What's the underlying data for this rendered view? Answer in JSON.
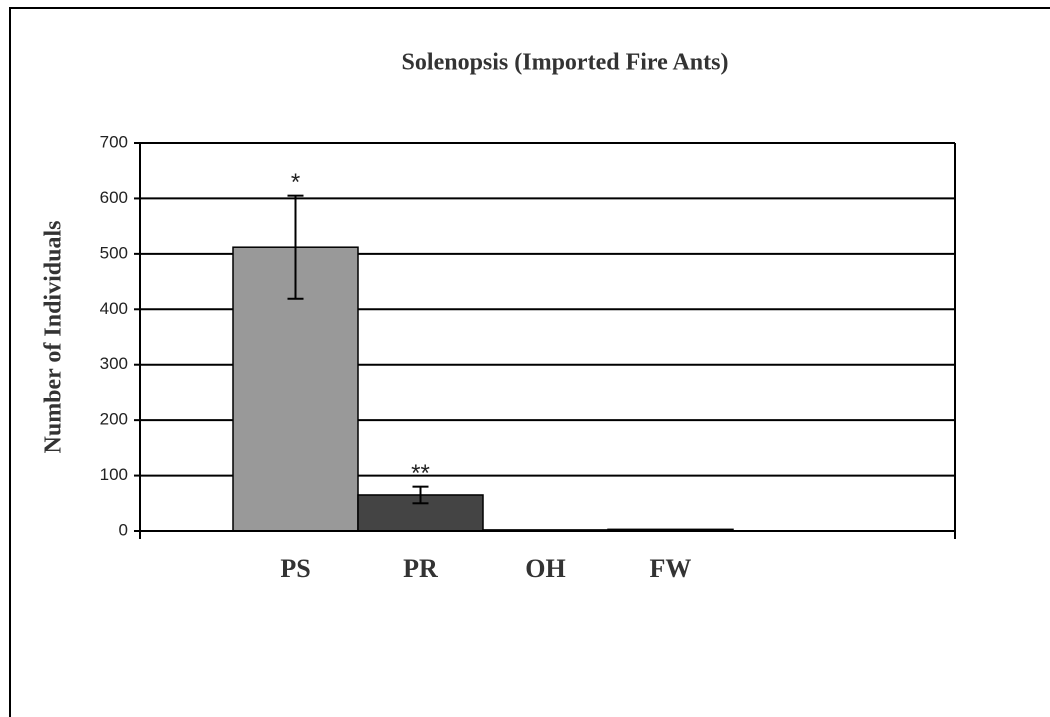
{
  "chart_data": {
    "type": "bar",
    "title": "Solenopsis  (Imported Fire Ants)",
    "y_label": "Number of Individuals",
    "categories": [
      "PS",
      "PR",
      "OH",
      "FW"
    ],
    "values": [
      512,
      65,
      2,
      3
    ],
    "errors": [
      93,
      15,
      0,
      0
    ],
    "colors": [
      "#999999",
      "#444444",
      "#333333",
      "#333333"
    ],
    "annotations": [
      "*",
      "**",
      null,
      null
    ],
    "ylim": [
      0,
      700
    ],
    "yticks": [
      0,
      100,
      200,
      300,
      400,
      500,
      600,
      700
    ],
    "grid": true
  }
}
